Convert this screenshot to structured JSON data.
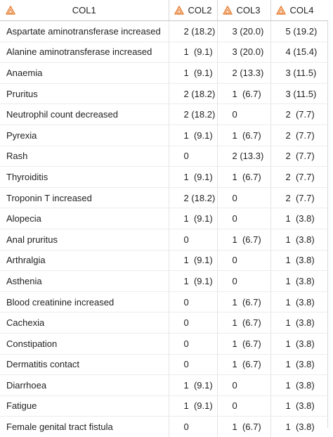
{
  "columns": [
    "COL1",
    "COL2",
    "COL3",
    "COL4"
  ],
  "header_icon": "sas-character-column-icon",
  "accent_color": "#e8833a",
  "rows": [
    [
      "Aspartate aminotransferase increased",
      "2 (18.2)",
      "3 (20.0)",
      "5 (19.2)"
    ],
    [
      "Alanine aminotransferase increased",
      "1  (9.1)",
      "3 (20.0)",
      "4 (15.4)"
    ],
    [
      "Anaemia",
      "1  (9.1)",
      "2 (13.3)",
      "3 (11.5)"
    ],
    [
      "Pruritus",
      "2 (18.2)",
      "1  (6.7)",
      "3 (11.5)"
    ],
    [
      "Neutrophil count decreased",
      "2 (18.2)",
      "0",
      "2  (7.7)"
    ],
    [
      "Pyrexia",
      "1  (9.1)",
      "1  (6.7)",
      "2  (7.7)"
    ],
    [
      "Rash",
      "0",
      "2 (13.3)",
      "2  (7.7)"
    ],
    [
      "Thyroiditis",
      "1  (9.1)",
      "1  (6.7)",
      "2  (7.7)"
    ],
    [
      "Troponin T increased",
      "2 (18.2)",
      "0",
      "2  (7.7)"
    ],
    [
      "Alopecia",
      "1  (9.1)",
      "0",
      "1  (3.8)"
    ],
    [
      "Anal pruritus",
      "0",
      "1  (6.7)",
      "1  (3.8)"
    ],
    [
      "Arthralgia",
      "1  (9.1)",
      "0",
      "1  (3.8)"
    ],
    [
      "Asthenia",
      "1  (9.1)",
      "0",
      "1  (3.8)"
    ],
    [
      "Blood creatinine increased",
      "0",
      "1  (6.7)",
      "1  (3.8)"
    ],
    [
      "Cachexia",
      "0",
      "1  (6.7)",
      "1  (3.8)"
    ],
    [
      "Constipation",
      "0",
      "1  (6.7)",
      "1  (3.8)"
    ],
    [
      "Dermatitis contact",
      "0",
      "1  (6.7)",
      "1  (3.8)"
    ],
    [
      "Diarrhoea",
      "1  (9.1)",
      "0",
      "1  (3.8)"
    ],
    [
      "Fatigue",
      "1  (9.1)",
      "0",
      "1  (3.8)"
    ],
    [
      "Female genital tract fistula",
      "0",
      "1  (6.7)",
      "1  (3.8)"
    ]
  ]
}
